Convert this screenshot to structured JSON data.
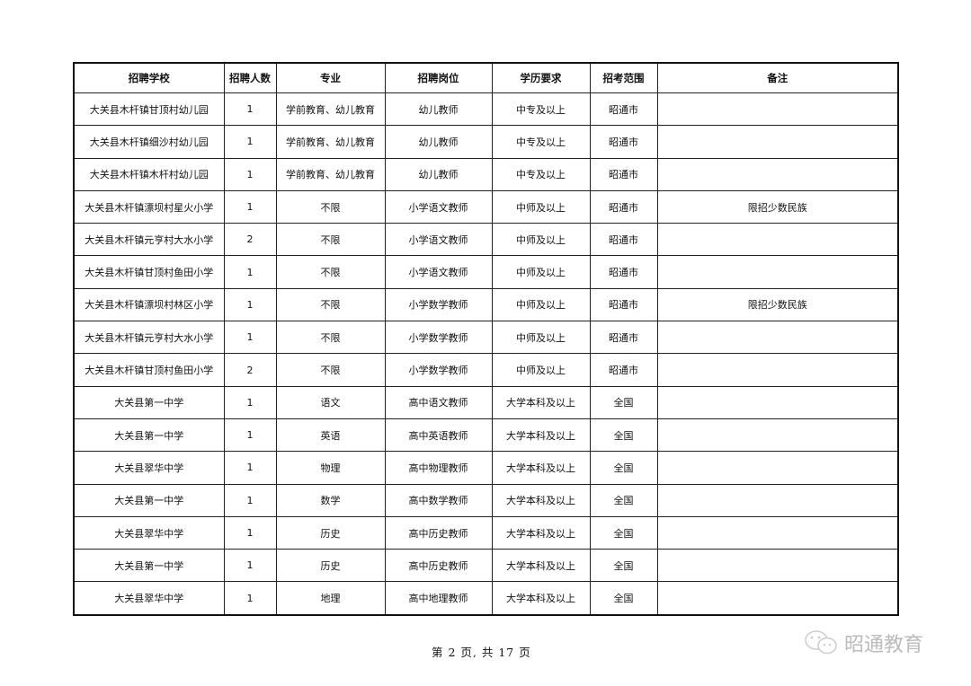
{
  "table": {
    "headers": [
      "招聘学校",
      "招聘人数",
      "专业",
      "招聘岗位",
      "学历要求",
      "招考范围",
      "备注"
    ],
    "rows": [
      [
        "大关县木杆镇甘顶村幼儿园",
        "1",
        "学前教育、幼儿教育",
        "幼儿教师",
        "中专及以上",
        "昭通市",
        ""
      ],
      [
        "大关县木杆镇细沙村幼儿园",
        "1",
        "学前教育、幼儿教育",
        "幼儿教师",
        "中专及以上",
        "昭通市",
        ""
      ],
      [
        "大关县木杆镇木杆村幼儿园",
        "1",
        "学前教育、幼儿教育",
        "幼儿教师",
        "中专及以上",
        "昭通市",
        ""
      ],
      [
        "大关县木杆镇漂坝村星火小学",
        "1",
        "不限",
        "小学语文教师",
        "中师及以上",
        "昭通市",
        "限招少数民族"
      ],
      [
        "大关县木杆镇元亨村大水小学",
        "2",
        "不限",
        "小学语文教师",
        "中师及以上",
        "昭通市",
        ""
      ],
      [
        "大关县木杆镇甘顶村鱼田小学",
        "1",
        "不限",
        "小学语文教师",
        "中师及以上",
        "昭通市",
        ""
      ],
      [
        "大关县木杆镇漂坝村林区小学",
        "1",
        "不限",
        "小学数学教师",
        "中师及以上",
        "昭通市",
        "限招少数民族"
      ],
      [
        "大关县木杆镇元亨村大水小学",
        "1",
        "不限",
        "小学数学教师",
        "中师及以上",
        "昭通市",
        ""
      ],
      [
        "大关县木杆镇甘顶村鱼田小学",
        "2",
        "不限",
        "小学数学教师",
        "中师及以上",
        "昭通市",
        ""
      ],
      [
        "大关县第一中学",
        "1",
        "语文",
        "高中语文教师",
        "大学本科及以上",
        "全国",
        ""
      ],
      [
        "大关县第一中学",
        "1",
        "英语",
        "高中英语教师",
        "大学本科及以上",
        "全国",
        ""
      ],
      [
        "大关县翠华中学",
        "1",
        "物理",
        "高中物理教师",
        "大学本科及以上",
        "全国",
        ""
      ],
      [
        "大关县第一中学",
        "1",
        "数学",
        "高中数学教师",
        "大学本科及以上",
        "全国",
        ""
      ],
      [
        "大关县翠华中学",
        "1",
        "历史",
        "高中历史教师",
        "大学本科及以上",
        "全国",
        ""
      ],
      [
        "大关县第一中学",
        "1",
        "历史",
        "高中历史教师",
        "大学本科及以上",
        "全国",
        ""
      ],
      [
        "大关县翠华中学",
        "1",
        "地理",
        "高中地理教师",
        "大学本科及以上",
        "全国",
        ""
      ]
    ]
  },
  "footer": {
    "page_text": "第 2 页, 共 17 页"
  },
  "watermark": {
    "text": "昭通教育",
    "icon": "wechat-icon"
  }
}
